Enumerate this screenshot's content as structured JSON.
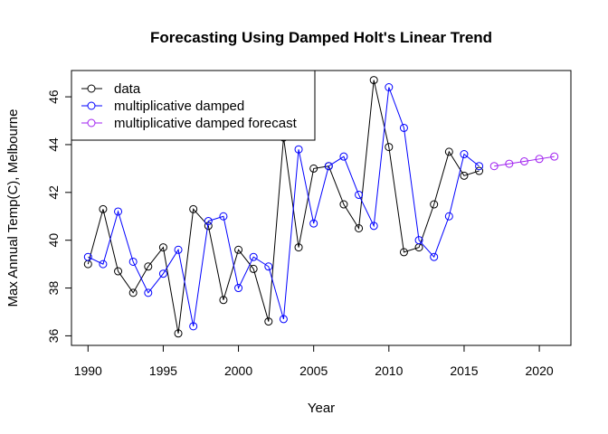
{
  "chart_data": {
    "type": "line",
    "title": "Forecasting Using Damped Holt's Linear Trend",
    "xlabel": "Year",
    "ylabel": "Max Annual Temp(C), Melbourne",
    "xlim": [
      1988.9,
      2022.1
    ],
    "ylim": [
      35.6,
      47.1
    ],
    "x_ticks": [
      1990,
      1995,
      2000,
      2005,
      2010,
      2015,
      2020
    ],
    "y_ticks": [
      36,
      38,
      40,
      42,
      44,
      46
    ],
    "grid": false,
    "legend_position": "top-left",
    "series": [
      {
        "name": "data",
        "color": "#000000",
        "marker": "open-circle",
        "x": [
          1990,
          1991,
          1992,
          1993,
          1994,
          1995,
          1996,
          1997,
          1998,
          1999,
          2000,
          2001,
          2002,
          2003,
          2004,
          2005,
          2006,
          2007,
          2008,
          2009,
          2010,
          2011,
          2012,
          2013,
          2014,
          2015,
          2016
        ],
        "values": [
          39.0,
          41.3,
          38.7,
          37.8,
          38.9,
          39.7,
          36.1,
          41.3,
          40.6,
          37.5,
          39.6,
          38.8,
          36.6,
          44.3,
          39.7,
          43.0,
          43.1,
          41.5,
          40.5,
          46.7,
          43.9,
          39.5,
          39.7,
          41.5,
          43.7,
          42.7,
          42.9
        ]
      },
      {
        "name": "multiplicative damped",
        "color": "#0000ff",
        "marker": "open-circle",
        "x": [
          1990,
          1991,
          1992,
          1993,
          1994,
          1995,
          1996,
          1997,
          1998,
          1999,
          2000,
          2001,
          2002,
          2003,
          2004,
          2005,
          2006,
          2007,
          2008,
          2009,
          2010,
          2011,
          2012,
          2013,
          2014,
          2015,
          2016
        ],
        "values": [
          39.3,
          39.0,
          41.2,
          39.1,
          37.8,
          38.6,
          39.6,
          36.4,
          40.8,
          41.0,
          38.0,
          39.3,
          38.9,
          36.7,
          43.8,
          40.7,
          43.1,
          43.5,
          41.9,
          40.6,
          46.4,
          44.7,
          40.0,
          39.3,
          41.0,
          43.6,
          43.1
        ]
      },
      {
        "name": "multiplicative damped forecast",
        "color": "#a020f0",
        "marker": "open-circle",
        "x": [
          2017,
          2018,
          2019,
          2020,
          2021
        ],
        "values": [
          43.1,
          43.2,
          43.3,
          43.4,
          43.5
        ]
      }
    ]
  }
}
